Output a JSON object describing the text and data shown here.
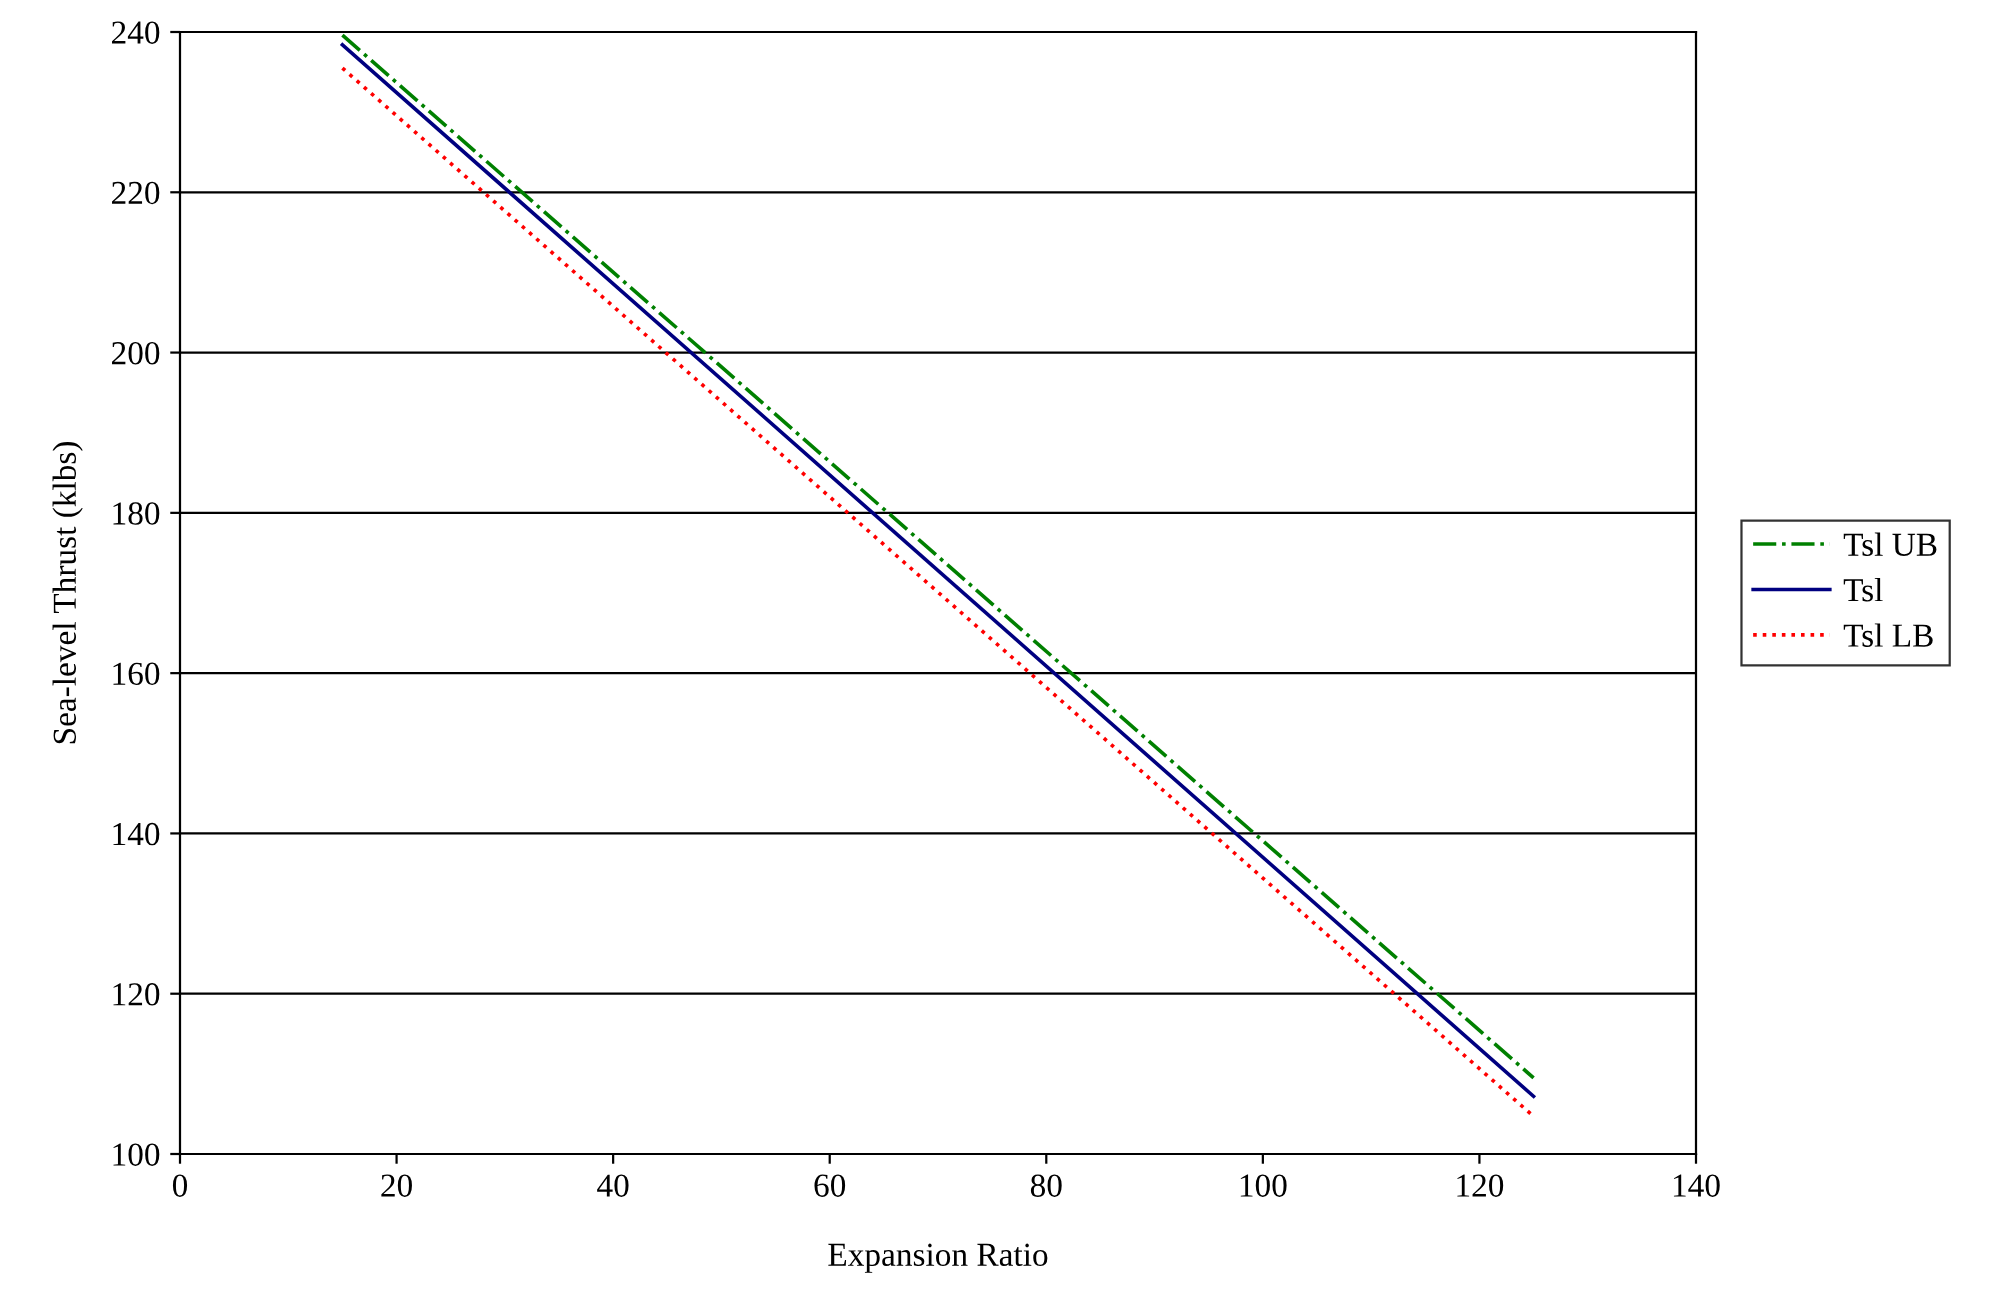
{
  "chart_data": {
    "type": "line",
    "xlabel": "Expansion Ratio",
    "ylabel": "Sea-level Thrust (klbs)",
    "x": [
      15,
      125
    ],
    "series": [
      {
        "name": "Tsl UB",
        "color": "#008000",
        "line_style": "dashdot",
        "values": [
          239.6,
          109.5
        ]
      },
      {
        "name": "Tsl",
        "color": "#000080",
        "line_style": "solid",
        "values": [
          238.4,
          107.2
        ]
      },
      {
        "name": "Tsl LB",
        "color": "#ff0000",
        "line_style": "dotted",
        "values": [
          235.5,
          104.7
        ]
      }
    ],
    "xlim": [
      0,
      140
    ],
    "xticks": [
      0,
      20,
      40,
      60,
      80,
      100,
      120,
      140
    ],
    "ylim": [
      100,
      240
    ],
    "yticks": [
      100,
      120,
      140,
      160,
      180,
      200,
      220,
      240
    ],
    "grid": "y",
    "legend": "right",
    "marker": "none"
  }
}
